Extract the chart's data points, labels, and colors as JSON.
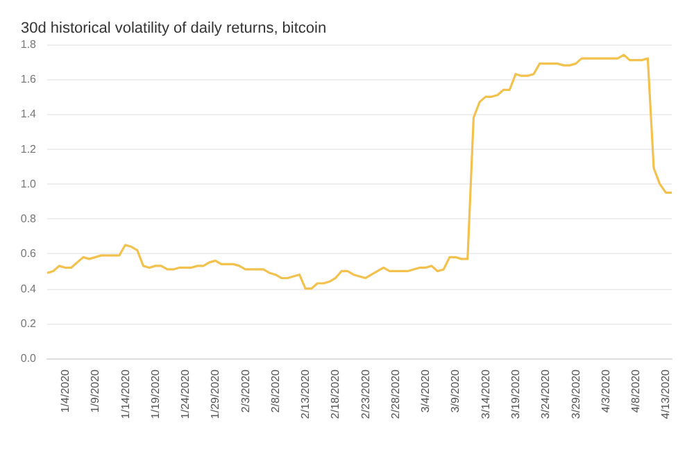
{
  "chart_data": {
    "type": "line",
    "title": "30d historical volatility of daily returns, bitcoin",
    "categories": [
      null,
      null,
      null,
      "1/4/2020",
      null,
      null,
      null,
      null,
      "1/9/2020",
      null,
      null,
      null,
      null,
      "1/14/2020",
      null,
      null,
      null,
      null,
      "1/19/2020",
      null,
      null,
      null,
      null,
      "1/24/2020",
      null,
      null,
      null,
      null,
      "1/29/2020",
      null,
      null,
      null,
      null,
      "2/3/2020",
      null,
      null,
      null,
      null,
      "2/8/2020",
      null,
      null,
      null,
      null,
      "2/13/2020",
      null,
      null,
      null,
      null,
      "2/18/2020",
      null,
      null,
      null,
      null,
      "2/23/2020",
      null,
      null,
      null,
      null,
      "2/28/2020",
      null,
      null,
      null,
      null,
      "3/4/2020",
      null,
      null,
      null,
      null,
      "3/9/2020",
      null,
      null,
      null,
      null,
      "3/14/2020",
      null,
      null,
      null,
      null,
      "3/19/2020",
      null,
      null,
      null,
      null,
      "3/24/2020",
      null,
      null,
      null,
      null,
      "3/29/2020",
      null,
      null,
      null,
      null,
      "4/3/2020",
      null,
      null,
      null,
      null,
      "4/8/2020",
      null,
      null,
      null,
      null,
      "4/13/2020",
      null
    ],
    "series": [
      {
        "color": "#f2c14e",
        "values": [
          0.49,
          0.5,
          0.53,
          0.52,
          0.52,
          0.55,
          0.58,
          0.57,
          0.58,
          0.59,
          0.59,
          0.59,
          0.59,
          0.65,
          0.64,
          0.62,
          0.53,
          0.52,
          0.53,
          0.53,
          0.51,
          0.51,
          0.52,
          0.52,
          0.52,
          0.53,
          0.53,
          0.55,
          0.56,
          0.54,
          0.54,
          0.54,
          0.53,
          0.51,
          0.51,
          0.51,
          0.51,
          0.49,
          0.48,
          0.46,
          0.46,
          0.47,
          0.48,
          0.4,
          0.4,
          0.43,
          0.43,
          0.44,
          0.46,
          0.5,
          0.5,
          0.48,
          0.47,
          0.46,
          0.48,
          0.5,
          0.52,
          0.5,
          0.5,
          0.5,
          0.5,
          0.51,
          0.52,
          0.52,
          0.53,
          0.5,
          0.51,
          0.58,
          0.58,
          0.57,
          0.57,
          1.38,
          1.47,
          1.5,
          1.5,
          1.51,
          1.54,
          1.54,
          1.63,
          1.62,
          1.62,
          1.63,
          1.69,
          1.69,
          1.69,
          1.69,
          1.68,
          1.68,
          1.69,
          1.72,
          1.72,
          1.72,
          1.72,
          1.72,
          1.72,
          1.72,
          1.74,
          1.71,
          1.71,
          1.71,
          1.72,
          1.09,
          1.0,
          0.95,
          0.95
        ]
      }
    ],
    "ylim": [
      0,
      1.8
    ],
    "yticks": [
      {
        "value": 0,
        "label": "0.0"
      },
      {
        "value": 0.2,
        "label": "0.2"
      },
      {
        "value": 0.4,
        "label": "0.4"
      },
      {
        "value": 0.6,
        "label": "0.6"
      },
      {
        "value": 0.8,
        "label": "0.8"
      },
      {
        "value": 1.0,
        "label": "1.0"
      },
      {
        "value": 1.2,
        "label": "1.2"
      },
      {
        "value": 1.4,
        "label": "1.4"
      },
      {
        "value": 1.6,
        "label": "1.6"
      },
      {
        "value": 1.8,
        "label": "1.8"
      }
    ],
    "grid": "y",
    "marker": "none",
    "line_style": "solid"
  }
}
